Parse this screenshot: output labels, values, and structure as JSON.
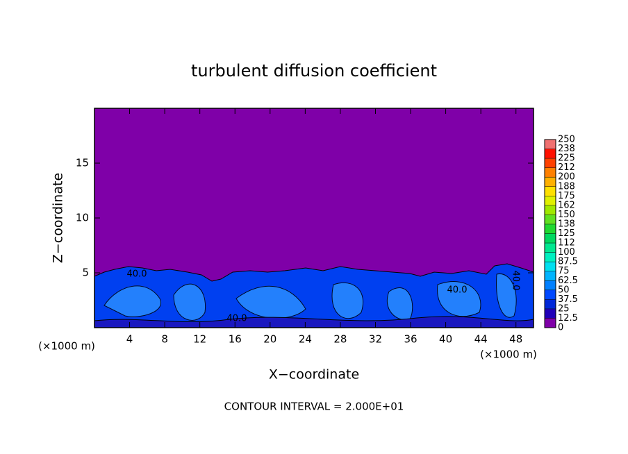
{
  "chart_data": {
    "type": "contour",
    "title": "turbulent diffusion coefficient",
    "xlabel": "X−coordinate",
    "ylabel": "Z−coordinate",
    "x_unit": "(×1000 m)",
    "y_unit": "(×1000 m)",
    "footnote": "CONTOUR INTERVAL = 2.000E+01",
    "xlim": [
      0,
      50
    ],
    "xticks": [
      4,
      8,
      12,
      16,
      20,
      24,
      28,
      32,
      36,
      40,
      44,
      48
    ],
    "ylim": [
      0,
      20
    ],
    "yticks": [
      5,
      10,
      15
    ],
    "contour_labels": [
      "40.0",
      "40.0",
      "40.0",
      "40.0"
    ],
    "colorbar": {
      "levels": [
        0,
        12.5,
        25,
        37.5,
        50,
        62.5,
        75,
        87.5,
        100,
        {
          "value": 112.5,
          "label": "112"
        },
        125,
        {
          "value": 137.5,
          "label": "138"
        },
        150,
        {
          "value": 162.5,
          "label": "162"
        },
        175,
        {
          "value": 187.5,
          "label": "188"
        },
        200,
        {
          "value": 212.5,
          "label": "212"
        },
        225,
        {
          "value": 237.5,
          "label": "238"
        },
        250
      ],
      "colors": [
        "#7f00a8",
        "#2000b8",
        "#0028d8",
        "#0048ff",
        "#0080ff",
        "#00b4ff",
        "#00e0f0",
        "#00f0c0",
        "#00e890",
        "#00d860",
        "#20d830",
        "#60e020",
        "#a0e800",
        "#e0f000",
        "#ffe000",
        "#ffb000",
        "#ff8000",
        "#ff4000",
        "#ff1000",
        "#f07070"
      ]
    }
  }
}
